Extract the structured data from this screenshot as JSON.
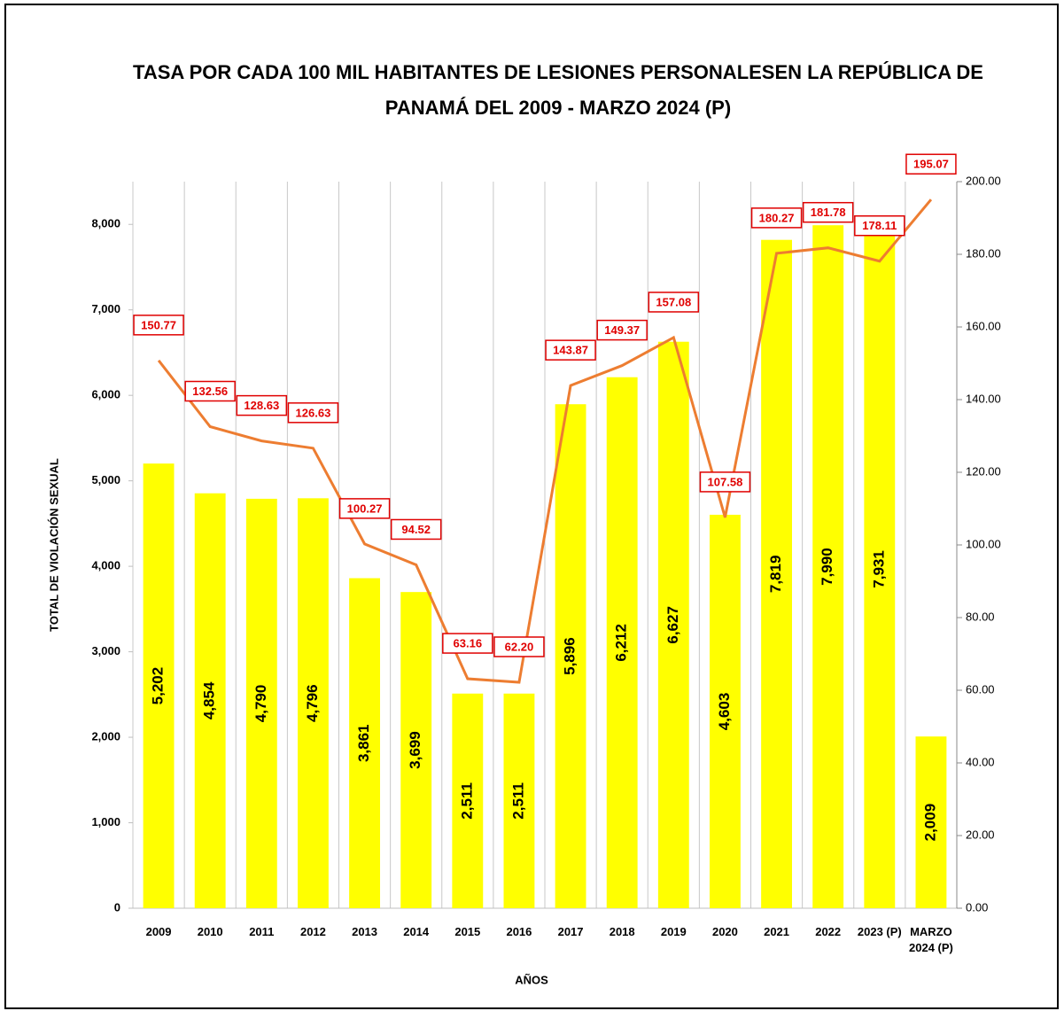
{
  "chart_data": {
    "type": "combo",
    "title": "TASA POR CADA 100 MIL HABITANTES DE LESIONES PERSONALESEN LA REPÚBLICA DE PANAMÁ DEL 2009 - MARZO 2024 (P)",
    "y_label": "TOTAL DE VIOLACIÓN SEXUAL",
    "x_label": "AÑOS",
    "categories": [
      "2009",
      "2010",
      "2011",
      "2012",
      "2013",
      "2014",
      "2015",
      "2016",
      "2017",
      "2018",
      "2019",
      "2020",
      "2021",
      "2022",
      "2023 (P)",
      "MARZO 2024 (P)"
    ],
    "bars": {
      "color": "#ffff00",
      "values": [
        5202,
        4854,
        4790,
        4796,
        3861,
        3699,
        2511,
        2511,
        5896,
        6212,
        6627,
        4603,
        7819,
        7990,
        7931,
        2009
      ],
      "value_labels": [
        "5,202",
        "4,854",
        "4,790",
        "4,796",
        "3,861",
        "3,699",
        "2,511",
        "2,511",
        "5,896",
        "6,212",
        "6,627",
        "4,603",
        "7,819",
        "7,990",
        "7,931",
        "2,009"
      ]
    },
    "line": {
      "color": "#ed7d31",
      "axis": "y2",
      "values": [
        150.77,
        132.56,
        128.63,
        126.63,
        100.27,
        94.52,
        63.16,
        62.2,
        143.87,
        149.37,
        157.08,
        107.58,
        180.27,
        181.78,
        178.11,
        195.07
      ],
      "value_labels": [
        "150.77",
        "132.56",
        "128.63",
        "126.63",
        "100.27",
        "94.52",
        "63.16",
        "62.20",
        "143.87",
        "149.37",
        "157.08",
        "107.58",
        "180.27",
        "181.78",
        "178.11",
        "195.07"
      ]
    },
    "ylim": [
      0,
      8500
    ],
    "yticks": [
      0,
      {
        "value": 1000,
        "label": "1,000"
      },
      {
        "value": 2000,
        "label": "2,000"
      },
      {
        "value": 3000,
        "label": "3,000"
      },
      {
        "value": 4000,
        "label": "4,000"
      },
      {
        "value": 5000,
        "label": "5,000"
      },
      {
        "value": 6000,
        "label": "6,000"
      },
      {
        "value": 7000,
        "label": "7,000"
      },
      {
        "value": 8000,
        "label": "8,000"
      }
    ],
    "y2lim": [
      0,
      200
    ],
    "y2ticks": [
      {
        "value": 0,
        "label": "0.00"
      },
      {
        "value": 20,
        "label": "20.00"
      },
      {
        "value": 40,
        "label": "40.00"
      },
      {
        "value": 60,
        "label": "60.00"
      },
      {
        "value": 80,
        "label": "80.00"
      },
      {
        "value": 100,
        "label": "100.00"
      },
      {
        "value": 120,
        "label": "120.00"
      },
      {
        "value": 140,
        "label": "140.00"
      },
      {
        "value": 160,
        "label": "160.00"
      },
      {
        "value": 180,
        "label": "180.00"
      },
      {
        "value": 200,
        "label": "200.00"
      }
    ]
  }
}
